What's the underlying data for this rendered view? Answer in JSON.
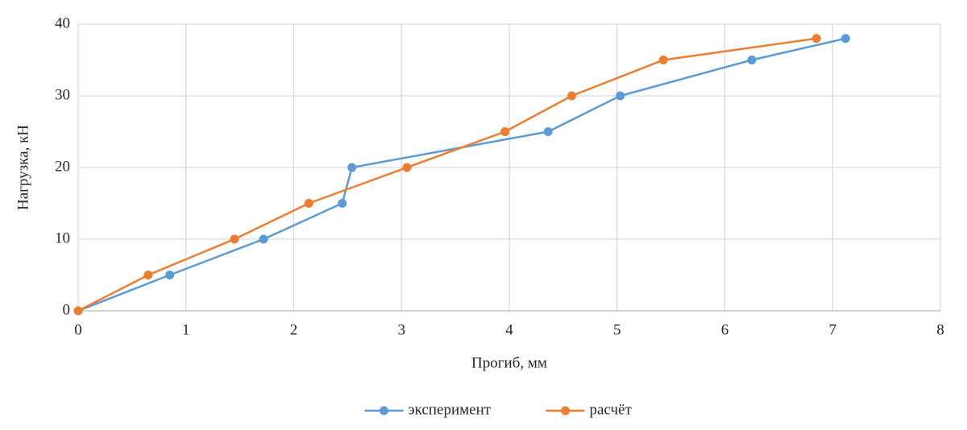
{
  "chart_data": {
    "type": "line",
    "x_label": "Прогиб, мм",
    "y_label": "Нагрузка, кН",
    "xlim": [
      0,
      8
    ],
    "xticks": [
      0,
      1,
      2,
      3,
      4,
      5,
      6,
      7,
      8
    ],
    "ylim": [
      0,
      40
    ],
    "yticks": [
      0,
      10,
      20,
      30,
      40
    ],
    "grid": true,
    "legend": "bottom",
    "series": [
      {
        "name": "эксперимент",
        "color": "#5b9bd5",
        "x": [
          0,
          0.85,
          1.72,
          2.45,
          2.54,
          4.36,
          5.03,
          6.25,
          7.12
        ],
        "values": [
          0,
          5,
          10,
          15,
          20,
          25,
          30,
          35,
          38
        ]
      },
      {
        "name": "расчёт",
        "color": "#ed7d31",
        "x": [
          0,
          0.65,
          1.45,
          2.14,
          3.05,
          3.96,
          4.58,
          5.43,
          6.85
        ],
        "values": [
          0,
          5,
          10,
          15,
          20,
          25,
          30,
          35,
          38
        ]
      }
    ]
  }
}
